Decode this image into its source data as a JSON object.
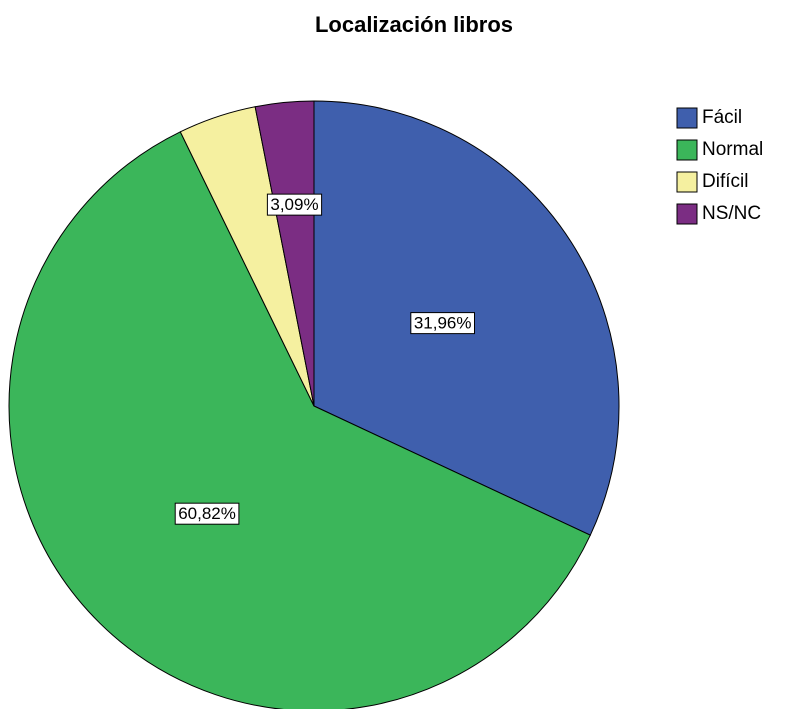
{
  "chart_data": {
    "type": "pie",
    "title": "Localización libros",
    "categories": [
      "Fácil",
      "Normal",
      "Difícil",
      "NS/NC"
    ],
    "values": [
      31.96,
      60.82,
      4.13,
      3.09
    ],
    "value_labels": [
      "31,96%",
      "60,82%",
      null,
      "3,09%"
    ],
    "colors": [
      "#3f5fad",
      "#3bb65a",
      "#f5f0a0",
      "#7b2d83"
    ],
    "legend": "right"
  }
}
